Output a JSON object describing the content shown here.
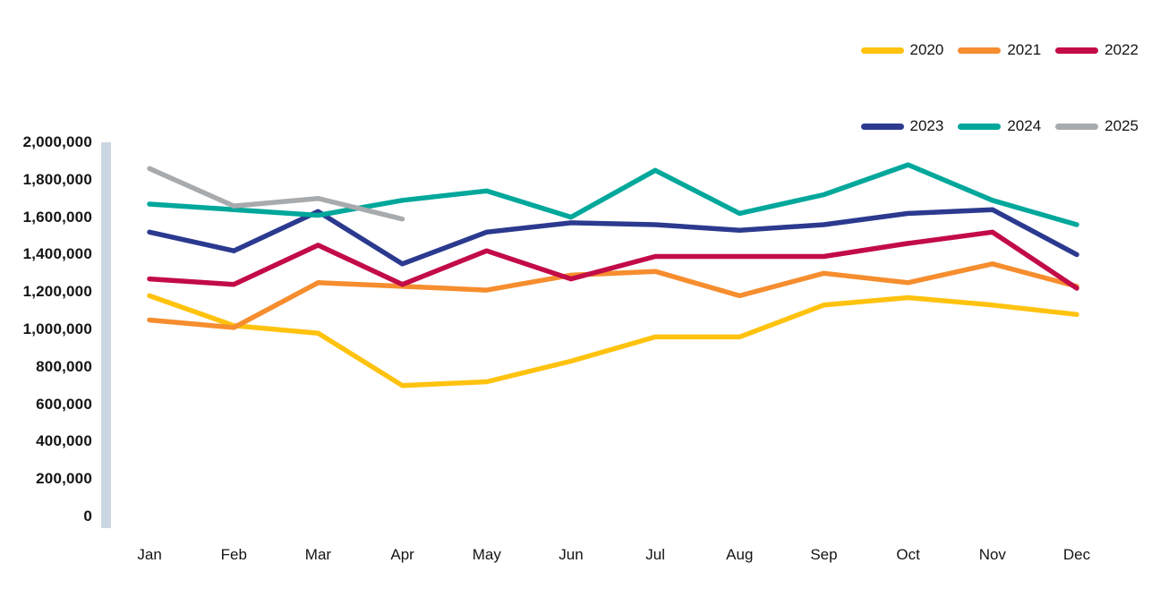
{
  "chart_data": {
    "type": "line",
    "title": "",
    "xlabel": "",
    "ylabel": "",
    "grid": "off",
    "legend_position": "top-right",
    "x_categories": [
      "Jan",
      "Feb",
      "Mar",
      "Apr",
      "May",
      "Jun",
      "Jul",
      "Aug",
      "Sep",
      "Oct",
      "Nov",
      "Dec"
    ],
    "y_axis": {
      "min": 0,
      "max": 2000000,
      "step": 200000,
      "tick_labels": [
        "2,000,000",
        "1,800,000",
        "1,600,000",
        "1,400,000",
        "1,200,000",
        "1,000,000",
        "800,000",
        "600,000",
        "400,000",
        "200,000",
        "0"
      ]
    },
    "series": [
      {
        "name": "2020",
        "color": "#FFC20E",
        "values": [
          1180000,
          1020000,
          980000,
          700000,
          720000,
          830000,
          960000,
          960000,
          1130000,
          1170000,
          1130000,
          1080000
        ]
      },
      {
        "name": "2021",
        "color": "#F68D2E",
        "values": [
          1050000,
          1010000,
          1250000,
          1230000,
          1210000,
          1290000,
          1310000,
          1180000,
          1300000,
          1250000,
          1350000,
          1230000
        ]
      },
      {
        "name": "2022",
        "color": "#C20B47",
        "values": [
          1270000,
          1240000,
          1450000,
          1240000,
          1420000,
          1270000,
          1390000,
          1390000,
          1390000,
          1460000,
          1520000,
          1220000
        ]
      },
      {
        "name": "2023",
        "color": "#2B3A8F",
        "values": [
          1520000,
          1420000,
          1630000,
          1350000,
          1520000,
          1570000,
          1560000,
          1530000,
          1560000,
          1620000,
          1640000,
          1400000
        ]
      },
      {
        "name": "2024",
        "color": "#00A79B",
        "values": [
          1670000,
          1640000,
          1610000,
          1690000,
          1740000,
          1600000,
          1850000,
          1620000,
          1720000,
          1880000,
          1690000,
          1560000
        ]
      },
      {
        "name": "2025",
        "color": "#A8ABAD",
        "values": [
          1860000,
          1660000,
          1700000,
          1590000
        ]
      }
    ],
    "axis_bar_color": "#CCD6E2"
  }
}
